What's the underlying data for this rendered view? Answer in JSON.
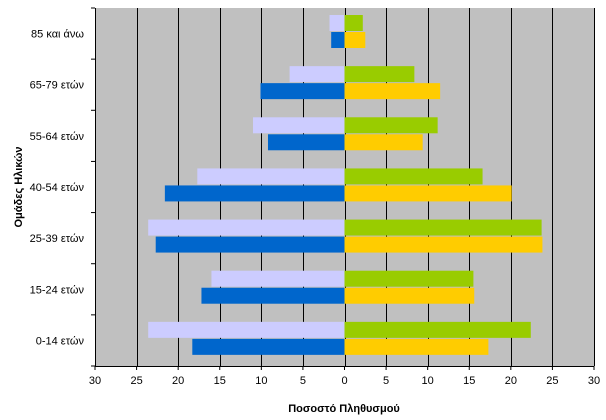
{
  "chart_data": {
    "type": "bar",
    "orientation": "horizontal",
    "layout": "population-pyramid",
    "xlabel": "Ποσοστό Πληθυσμού",
    "ylabel": "Ομάδες Ηλικών",
    "xlim": [
      -30,
      30
    ],
    "xticks": [
      -30,
      -25,
      -20,
      -15,
      -10,
      -5,
      0,
      5,
      10,
      15,
      20,
      25,
      30
    ],
    "xtick_labels": [
      "30",
      "25",
      "20",
      "15",
      "10",
      "5",
      "0",
      "5",
      "10",
      "15",
      "20",
      "25",
      "30"
    ],
    "grid": "vertical",
    "legend": "none",
    "categories": [
      "0-14 ετών",
      "15-24 ετών",
      "25-39 ετών",
      "40-54 ετών",
      "55-64 ετών",
      "65-79 ετών",
      "85 και άνω"
    ],
    "series": [
      {
        "side": "left",
        "slot": 0,
        "color": "#CCCCFF",
        "values": [
          23.6,
          16.0,
          23.6,
          17.7,
          11.0,
          6.6,
          1.8
        ]
      },
      {
        "side": "left",
        "slot": 1,
        "color": "#0066CC",
        "values": [
          18.3,
          17.2,
          22.7,
          21.6,
          9.2,
          10.1,
          1.6
        ]
      },
      {
        "side": "right",
        "slot": 0,
        "color": "#99CC00",
        "values": [
          22.4,
          15.5,
          23.7,
          16.6,
          11.2,
          8.4,
          2.2
        ]
      },
      {
        "side": "right",
        "slot": 1,
        "color": "#FFCC00",
        "values": [
          17.3,
          15.6,
          23.8,
          20.1,
          9.4,
          11.5,
          2.5
        ]
      }
    ],
    "colors": {
      "plot_background": "#C0C0C0",
      "gridline": "#000000"
    }
  }
}
